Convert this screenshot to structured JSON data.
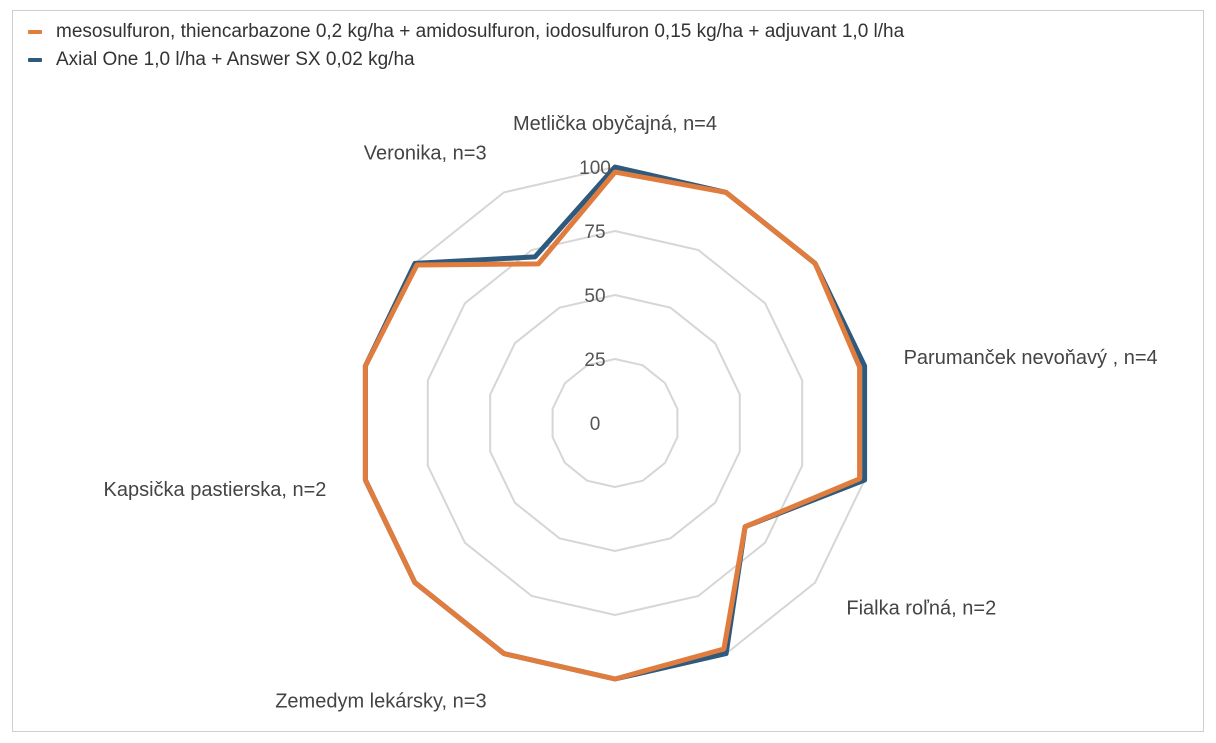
{
  "chart_data": {
    "type": "radar",
    "categories": [
      "Metlička obyčajná, n=4",
      "",
      "",
      "Parumanček nevoňavý , n=4",
      "",
      "Fialka roľná, n=2",
      "",
      "",
      "Zemedym lekársky, n=3",
      "",
      "Kapsička pastierska, n=2",
      "",
      "",
      "Veronika, n=3"
    ],
    "radial_ticks": [
      "0",
      "25",
      "50",
      "75",
      "100"
    ],
    "rlim": [
      0,
      100
    ],
    "grid": true,
    "legend_position": "top-left",
    "series": [
      {
        "name": "Axial One 1,0 l/ha + Answer SX 0,02 kg/ha",
        "color": "#2e5a7e",
        "values": [
          100,
          100,
          100,
          100,
          100,
          65,
          100,
          100,
          100,
          100,
          100,
          100,
          100,
          72
        ]
      },
      {
        "name": "mesosulfuron, thiencarbazone 0,2 kg/ha + amidosulfuron, iodosulfuron 0,15 kg/ha + adjuvant 1,0 l/ha",
        "color": "#e07c3e",
        "values": [
          98,
          100,
          100,
          98,
          98,
          65,
          98,
          100,
          100,
          100,
          100,
          100,
          99,
          69
        ]
      }
    ]
  },
  "legend": {
    "items": [
      {
        "label": "mesosulfuron, thiencarbazone 0,2 kg/ha + amidosulfuron, iodosulfuron 0,15 kg/ha + adjuvant 1,0 l/ha",
        "color": "#e07c3e"
      },
      {
        "label": "Axial One 1,0 l/ha + Answer SX 0,02 kg/ha",
        "color": "#2e5a7e"
      }
    ]
  }
}
